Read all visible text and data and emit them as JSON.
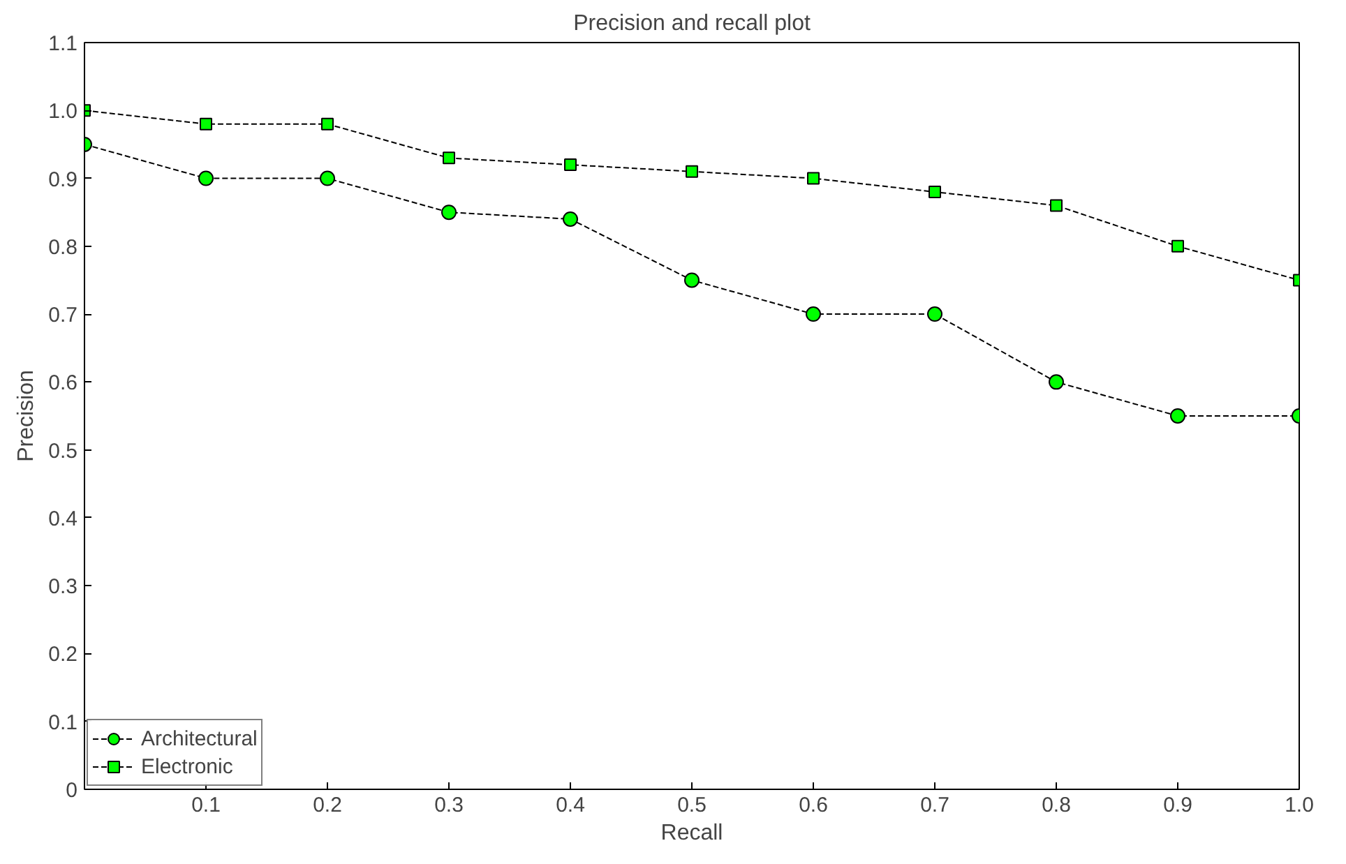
{
  "chart_data": {
    "type": "line",
    "title": "Precision and recall plot",
    "xlabel": "Recall",
    "ylabel": "Precision",
    "x": [
      0,
      0.1,
      0.2,
      0.3,
      0.4,
      0.5,
      0.6,
      0.7,
      0.8,
      0.9,
      1.0
    ],
    "series": [
      {
        "name": "Architectural",
        "color": "#00ff00",
        "marker": "circle",
        "values": [
          0.95,
          0.9,
          0.9,
          0.85,
          0.84,
          0.75,
          0.7,
          0.7,
          0.6,
          0.55,
          0.55
        ]
      },
      {
        "name": "Electronic",
        "color": "#00ff00",
        "marker": "square",
        "values": [
          1.0,
          0.98,
          0.98,
          0.93,
          0.92,
          0.91,
          0.9,
          0.88,
          0.86,
          0.8,
          0.75
        ]
      }
    ],
    "xlim": [
      0,
      1
    ],
    "ylim": [
      0,
      1.1
    ],
    "xticks": [
      0.1,
      0.2,
      0.3,
      0.4,
      0.5,
      0.6,
      0.7,
      0.8,
      0.9,
      {
        "value": 1,
        "label": "1.0"
      }
    ],
    "yticks": [
      0,
      0.1,
      0.2,
      0.3,
      0.4,
      0.5,
      0.6,
      0.7,
      0.8,
      0.9,
      {
        "value": 1,
        "label": "1.0"
      },
      1.1
    ],
    "line_style": "dashed",
    "grid": false,
    "legend": "bottom left"
  }
}
